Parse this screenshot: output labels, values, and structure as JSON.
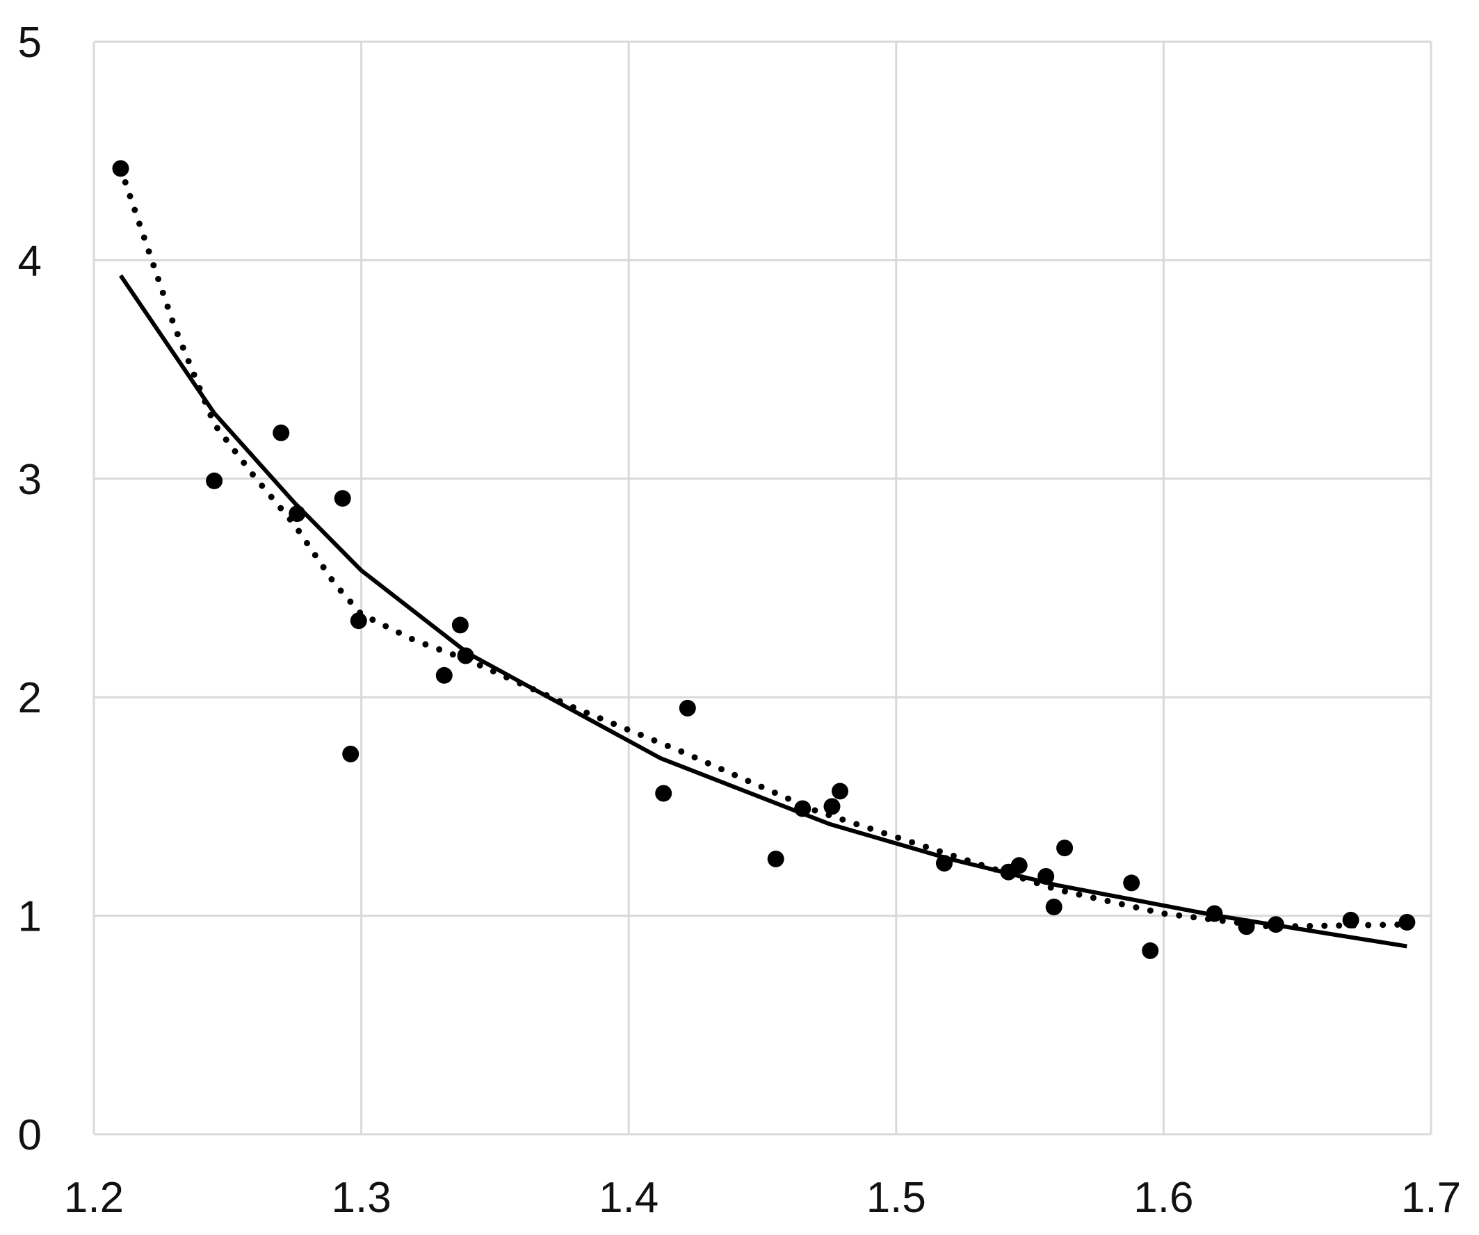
{
  "chart_data": {
    "type": "scatter",
    "title": "",
    "xlabel": "",
    "ylabel": "",
    "xlim": [
      1.2,
      1.7
    ],
    "ylim": [
      0,
      5
    ],
    "x_ticks": [
      "1.2",
      "1.3",
      "1.4",
      "1.5",
      "1.6",
      "1.7"
    ],
    "y_ticks": [
      "0",
      "1",
      "2",
      "3",
      "4",
      "5"
    ],
    "grid": true,
    "legend": "none",
    "colors": {
      "marks": "#000000",
      "grid": "#d9d9d9",
      "text": "#111111"
    },
    "series": [
      {
        "type": "scatter",
        "marker": "filled-circle",
        "points": [
          [
            1.21,
            4.42
          ],
          [
            1.245,
            2.99
          ],
          [
            1.27,
            3.21
          ],
          [
            1.276,
            2.84
          ],
          [
            1.293,
            2.91
          ],
          [
            1.296,
            1.74
          ],
          [
            1.299,
            2.35
          ],
          [
            1.331,
            2.1
          ],
          [
            1.337,
            2.33
          ],
          [
            1.339,
            2.19
          ],
          [
            1.413,
            1.56
          ],
          [
            1.422,
            1.95
          ],
          [
            1.455,
            1.26
          ],
          [
            1.465,
            1.49
          ],
          [
            1.476,
            1.5
          ],
          [
            1.479,
            1.57
          ],
          [
            1.518,
            1.24
          ],
          [
            1.542,
            1.2
          ],
          [
            1.546,
            1.23
          ],
          [
            1.556,
            1.18
          ],
          [
            1.559,
            1.04
          ],
          [
            1.563,
            1.31
          ],
          [
            1.588,
            1.15
          ],
          [
            1.595,
            0.84
          ],
          [
            1.619,
            1.01
          ],
          [
            1.631,
            0.95
          ],
          [
            1.642,
            0.96
          ],
          [
            1.67,
            0.98
          ],
          [
            1.691,
            0.97
          ]
        ]
      },
      {
        "type": "line",
        "style": "solid",
        "points": [
          [
            1.21,
            3.93
          ],
          [
            1.245,
            3.3
          ],
          [
            1.275,
            2.89
          ],
          [
            1.3,
            2.58
          ],
          [
            1.34,
            2.2
          ],
          [
            1.412,
            1.72
          ],
          [
            1.475,
            1.42
          ],
          [
            1.52,
            1.26
          ],
          [
            1.56,
            1.14
          ],
          [
            1.62,
            1.0
          ],
          [
            1.691,
            0.86
          ]
        ]
      },
      {
        "type": "line",
        "style": "dotted",
        "points": [
          [
            1.21,
            4.42
          ],
          [
            1.23,
            3.7
          ],
          [
            1.245,
            3.25
          ],
          [
            1.26,
            3.01
          ],
          [
            1.275,
            2.79
          ],
          [
            1.29,
            2.52
          ],
          [
            1.3,
            2.38
          ],
          [
            1.32,
            2.26
          ],
          [
            1.34,
            2.17
          ],
          [
            1.38,
            1.95
          ],
          [
            1.42,
            1.75
          ],
          [
            1.47,
            1.48
          ],
          [
            1.52,
            1.28
          ],
          [
            1.56,
            1.12
          ],
          [
            1.6,
            1.01
          ],
          [
            1.64,
            0.95
          ],
          [
            1.691,
            0.96
          ]
        ]
      }
    ]
  }
}
